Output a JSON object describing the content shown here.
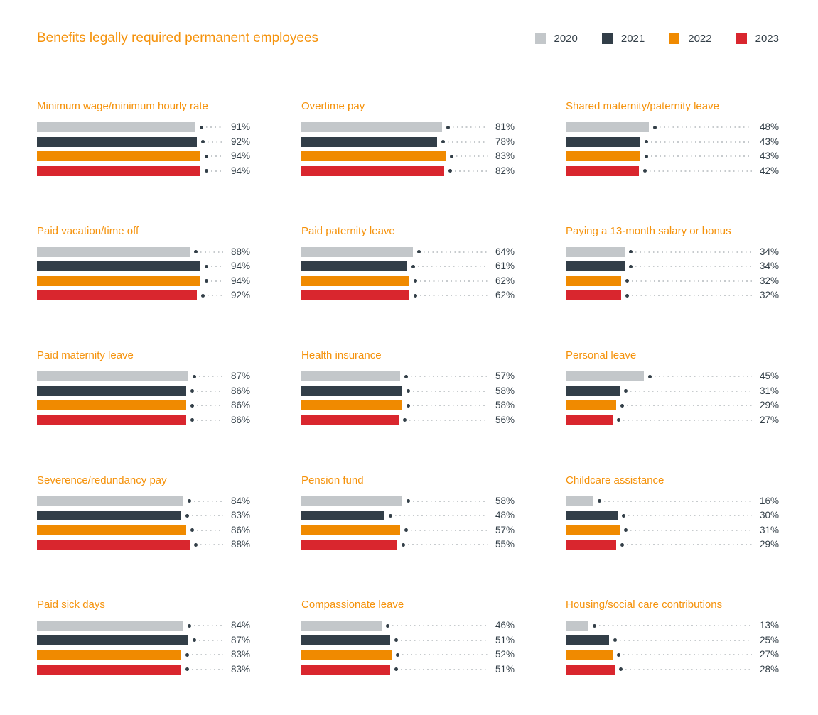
{
  "header": {
    "title": "Benefits legally required permanent employees"
  },
  "legend": {
    "position": "top-right",
    "items": [
      {
        "label": "2020",
        "color": "#C3C7CA"
      },
      {
        "label": "2021",
        "color": "#323E48"
      },
      {
        "label": "2022",
        "color": "#F08A00"
      },
      {
        "label": "2023",
        "color": "#D9262E"
      }
    ]
  },
  "chart_data": {
    "type": "bar",
    "orientation": "horizontal",
    "title": "Benefits legally required permanent employees",
    "series": [
      "2020",
      "2021",
      "2022",
      "2023"
    ],
    "series_colors": [
      "#C3C7CA",
      "#323E48",
      "#F08A00",
      "#D9262E"
    ],
    "value_suffix": "%",
    "xlim": [
      0,
      100
    ],
    "grid": "off",
    "legend_position": "top-right",
    "panels": [
      {
        "title": "Minimum wage/minimum hourly rate",
        "values": [
          91,
          92,
          94,
          94
        ]
      },
      {
        "title": "Overtime pay",
        "values": [
          81,
          78,
          83,
          82
        ]
      },
      {
        "title": "Shared maternity/paternity leave",
        "values": [
          48,
          43,
          43,
          42
        ]
      },
      {
        "title": "Paid vacation/time off",
        "values": [
          88,
          94,
          94,
          92
        ]
      },
      {
        "title": "Paid paternity leave",
        "values": [
          64,
          61,
          62,
          62
        ]
      },
      {
        "title": "Paying a 13-month salary or bonus",
        "values": [
          34,
          34,
          32,
          32
        ]
      },
      {
        "title": "Paid maternity leave",
        "values": [
          87,
          86,
          86,
          86
        ]
      },
      {
        "title": "Health insurance",
        "values": [
          57,
          58,
          58,
          56
        ]
      },
      {
        "title": "Personal leave",
        "values": [
          45,
          31,
          29,
          27
        ]
      },
      {
        "title": "Severence/redundancy pay",
        "values": [
          84,
          83,
          86,
          88
        ]
      },
      {
        "title": "Pension fund",
        "values": [
          58,
          48,
          57,
          55
        ]
      },
      {
        "title": "Childcare assistance",
        "values": [
          16,
          30,
          31,
          29
        ]
      },
      {
        "title": "Paid sick days",
        "values": [
          84,
          87,
          83,
          83
        ]
      },
      {
        "title": "Compassionate leave",
        "values": [
          46,
          51,
          52,
          51
        ]
      },
      {
        "title": "Housing/social care contributions",
        "values": [
          13,
          25,
          27,
          28
        ]
      }
    ]
  },
  "colors": {
    "title_orange": "#F5920B",
    "label_text": "#333F48",
    "marker_dot": "#333F48",
    "leader_dots": "#C7CBCE",
    "background": "#FFFFFF"
  }
}
